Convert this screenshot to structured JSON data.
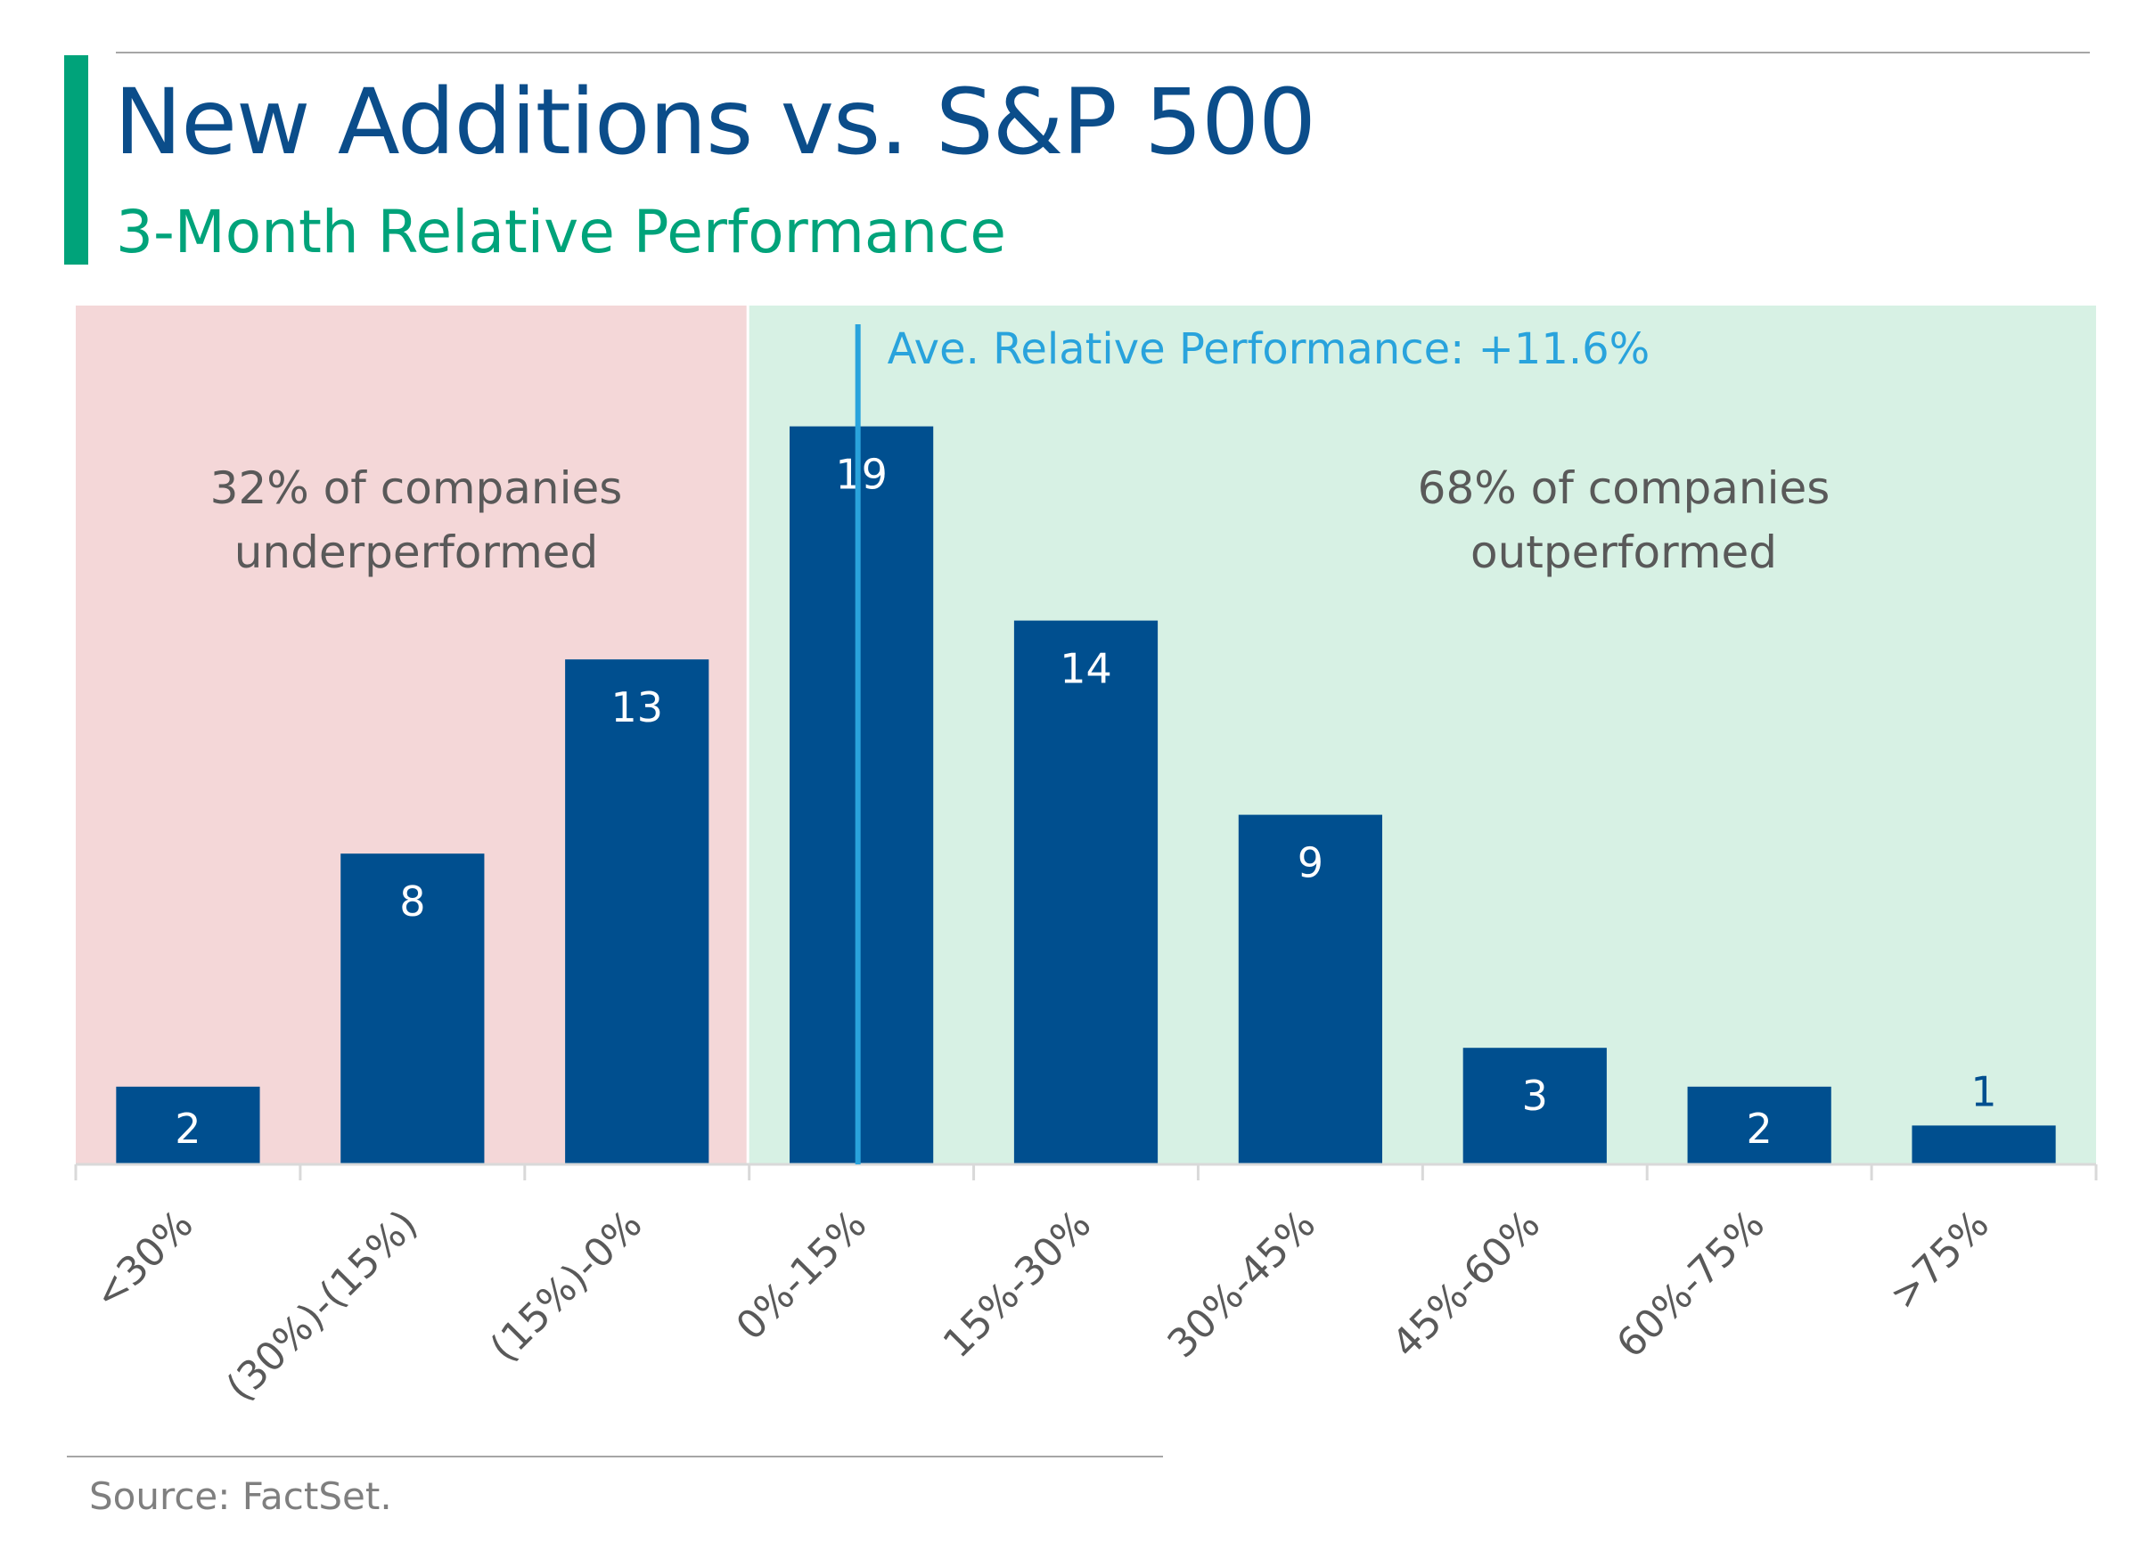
{
  "header": {
    "title": "New Additions vs. S&P 500",
    "subtitle": "3-Month Relative Performance"
  },
  "footer": {
    "source": "Source: FactSet."
  },
  "colors": {
    "bar": "#004f8f",
    "accent": "#00a37a",
    "title": "#0b4d8a",
    "avg_line": "#29a3dc",
    "underperform_bg": "#f4d7d8",
    "outperform_bg": "#d7f1e4",
    "annotation_text": "#595959"
  },
  "chart_data": {
    "type": "bar",
    "title": "New Additions vs. S&P 500",
    "subtitle": "3-Month Relative Performance",
    "xlabel": "",
    "ylabel": "",
    "ylim": [
      0,
      21
    ],
    "categories": [
      "<30%",
      "(30%)-(15%)",
      "(15%)-0%",
      "0%-15%",
      "15%-30%",
      "30%-45%",
      "45%-60%",
      "60%-75%",
      ">75%"
    ],
    "values": [
      2,
      8,
      13,
      19,
      14,
      9,
      3,
      2,
      1
    ],
    "data_labels": [
      "2",
      "8",
      "13",
      "19",
      "14",
      "9",
      "3",
      "2",
      "1"
    ],
    "grid": false,
    "legend": "none",
    "regions": [
      {
        "label": "32% of companies underperformed",
        "lines": [
          "32% of companies",
          "underperformed"
        ],
        "from_category": 0,
        "to_category": 2
      },
      {
        "label": "68% of companies outperformed",
        "lines": [
          "68% of companies",
          "outperformed"
        ],
        "from_category": 3,
        "to_category": 8
      }
    ],
    "average": {
      "label": "Ave. Relative Performance: +11.6%",
      "value_pct": 11.6,
      "bin_range": [
        0,
        15
      ],
      "bin_index": 3
    }
  }
}
